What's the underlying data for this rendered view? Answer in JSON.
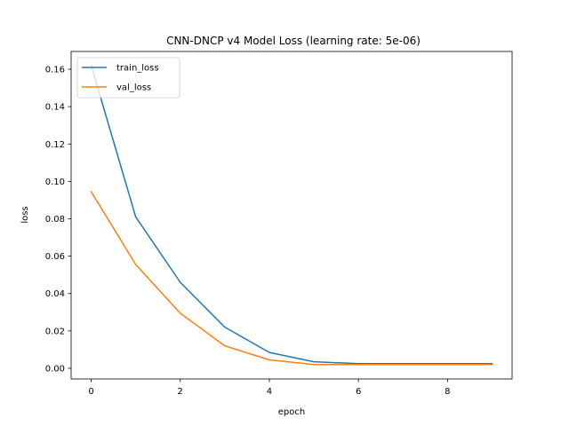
{
  "chart_data": {
    "type": "line",
    "title": "CNN-DNCP v4 Model Loss (learning rate: 5e-06)",
    "xlabel": "epoch",
    "ylabel": "loss",
    "x": [
      0,
      1,
      2,
      3,
      4,
      5,
      6,
      7,
      8,
      9
    ],
    "xlim": [
      -0.45,
      9.45
    ],
    "ylim": [
      -0.0057,
      0.1695
    ],
    "xticks": [
      0,
      2,
      4,
      6,
      8
    ],
    "yticks": [
      0.0,
      0.02,
      0.04,
      0.06,
      0.08,
      0.1,
      0.12,
      0.14,
      0.16
    ],
    "xtick_labels": [
      "0",
      "2",
      "4",
      "6",
      "8"
    ],
    "ytick_labels": [
      "0.00",
      "0.02",
      "0.04",
      "0.06",
      "0.08",
      "0.10",
      "0.12",
      "0.14",
      "0.16"
    ],
    "grid": false,
    "legend_position": "top-left",
    "series": [
      {
        "name": "train_loss",
        "color": "#1f77b4",
        "values": [
          0.162,
          0.081,
          0.046,
          0.022,
          0.0085,
          0.0035,
          0.0025,
          0.0025,
          0.0025,
          0.0025
        ]
      },
      {
        "name": "val_loss",
        "color": "#ff7f0e",
        "values": [
          0.0945,
          0.0555,
          0.0295,
          0.012,
          0.0045,
          0.002,
          0.002,
          0.002,
          0.002,
          0.002
        ]
      }
    ]
  }
}
